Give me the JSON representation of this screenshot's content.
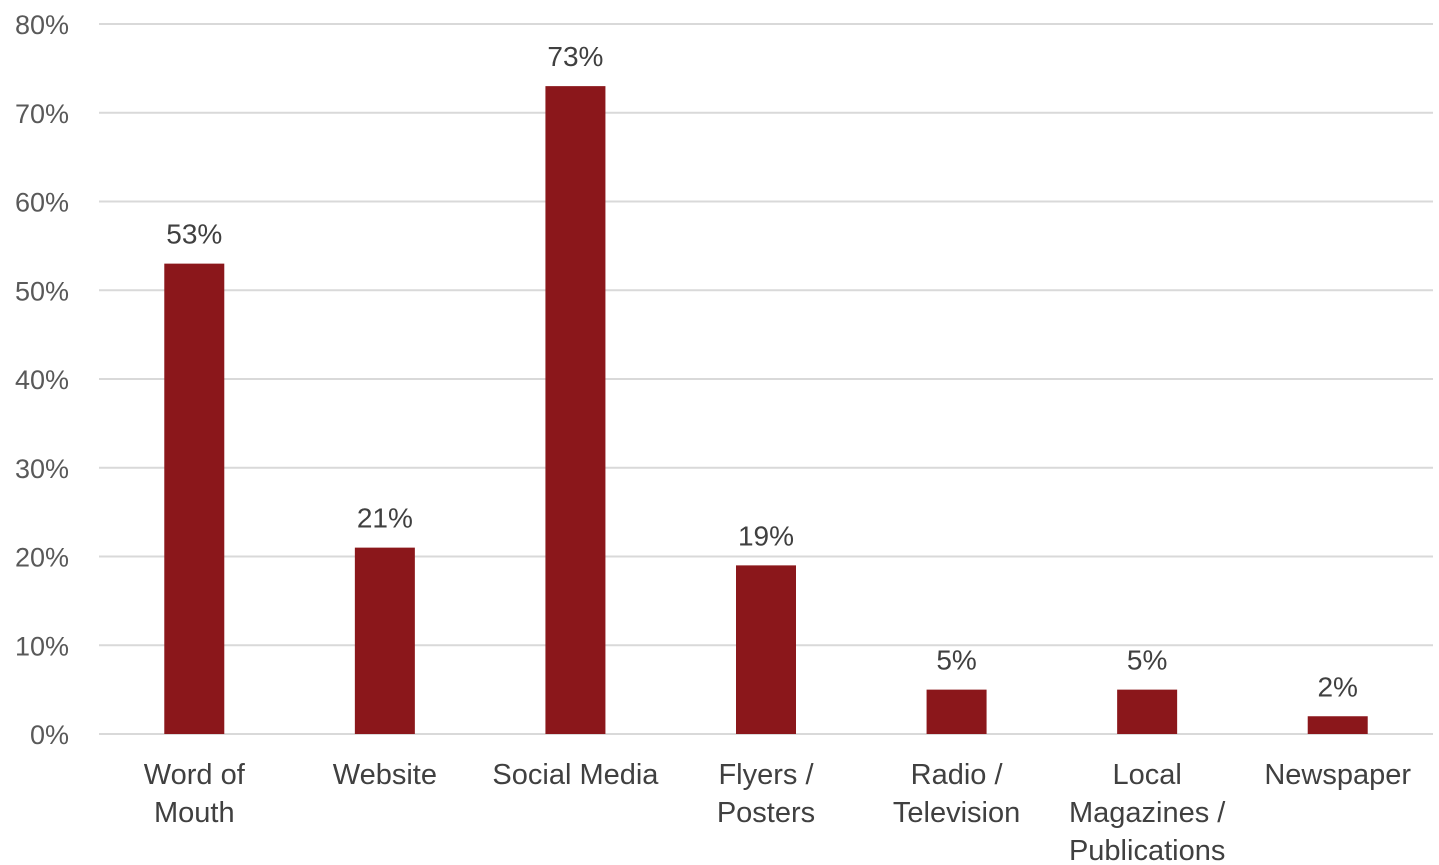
{
  "chart_data": {
    "type": "bar",
    "categories": [
      [
        "Word of",
        "Mouth"
      ],
      [
        "Website"
      ],
      [
        "Social Media"
      ],
      [
        "Flyers /",
        "Posters"
      ],
      [
        "Radio /",
        "Television"
      ],
      [
        "Local",
        "Magazines /",
        "Publications"
      ],
      [
        "Newspaper"
      ]
    ],
    "values": [
      53,
      21,
      73,
      19,
      5,
      5,
      2
    ],
    "data_labels": [
      "53%",
      "21%",
      "73%",
      "19%",
      "5%",
      "5%",
      "2%"
    ],
    "title": "",
    "xlabel": "",
    "ylabel": "",
    "ylim": [
      0,
      80
    ],
    "yticks": [
      0,
      10,
      20,
      30,
      40,
      50,
      60,
      70,
      80
    ],
    "ytick_labels": [
      "0%",
      "10%",
      "20%",
      "30%",
      "40%",
      "50%",
      "60%",
      "70%",
      "80%"
    ],
    "grid": true,
    "legend": "none",
    "bar_color": "#8b171b"
  }
}
